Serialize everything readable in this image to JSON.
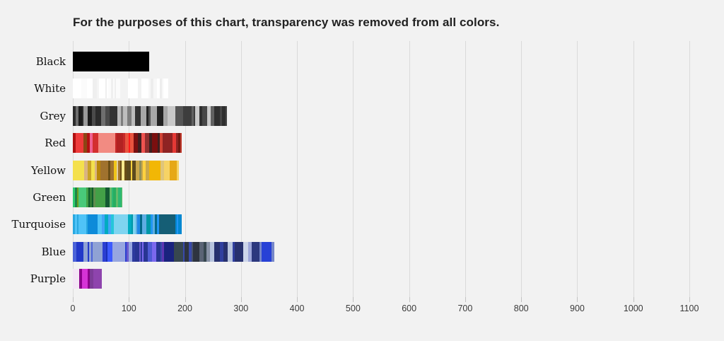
{
  "chart_data": {
    "type": "bar",
    "orientation": "horizontal",
    "title": "For the purposes of this chart, transparency was removed from all colors.",
    "categories": [
      "Black",
      "White",
      "Grey",
      "Red",
      "Yellow",
      "Green",
      "Turquoise",
      "Blue",
      "Purple"
    ],
    "values": [
      136,
      170,
      275,
      194,
      189,
      88,
      194,
      359,
      52
    ],
    "xlabel": "",
    "ylabel": "",
    "xlim": [
      0,
      1100
    ],
    "x_ticks": [
      0,
      100,
      200,
      300,
      400,
      500,
      600,
      700,
      800,
      900,
      1000,
      1100
    ],
    "grid": true,
    "legend": "none",
    "bar_style": "barcode: each bar is packed thin vertical stripes of individual color shades",
    "stripe_palettes": {
      "Black": [
        "#000000"
      ],
      "White": [
        "#ffffff",
        "#f4f4f4",
        "#ffffff",
        "#fbfbfb",
        "#efefef",
        "#ffffff",
        "#f2f2f2",
        "#ffffff",
        "#f7f7f7",
        "#ffffff",
        "#ededed",
        "#ffffff"
      ],
      "Grey": [
        "#2b2b2b",
        "#6e6e6e",
        "#1c1c1c",
        "#9a9a9a",
        "#4a4a4a",
        "#bdbdbd",
        "#333333",
        "#7d7d7d",
        "#232323",
        "#a8a8a8",
        "#555555",
        "#8e8e8e",
        "#3d3d3d",
        "#c9c9c9",
        "#616161",
        "#2f2f2f",
        "#868686",
        "#474747"
      ],
      "Red": [
        "#b01111",
        "#e32636",
        "#8b4513",
        "#ef3b3b",
        "#f06292",
        "#d32f2f",
        "#ff2e4c",
        "#f28b82",
        "#c62828",
        "#ff1a1a",
        "#e8553f",
        "#b22222",
        "#912f2f",
        "#ef5350",
        "#7a0f0f",
        "#3e1f1f",
        "#d14334",
        "#a93226",
        "#e53935",
        "#6d1a12",
        "#c0392b",
        "#8e2323"
      ],
      "Yellow": [
        "#e8d44d",
        "#c9a227",
        "#f4e04d",
        "#b8860b",
        "#d9b382",
        "#8a7a1e",
        "#f0c419",
        "#a0722e",
        "#6b4e16",
        "#e0cda0",
        "#f7e98e",
        "#5c4a1e",
        "#ffd23f",
        "#caa84a",
        "#8f8f5a",
        "#f2b705",
        "#dfc57b",
        "#e6a817",
        "#b5a642",
        "#f6d365"
      ],
      "Green": [
        "#6b9e1f",
        "#2ecc71",
        "#1e8449",
        "#49c97a",
        "#0f5c2e",
        "#37b06a",
        "#2e7d32",
        "#43a047",
        "#5f8d4e",
        "#1abc7b",
        "#0b6623",
        "#27ae60",
        "#145a32",
        "#66bb6a",
        "#1b5e20",
        "#2eb872"
      ],
      "Turquoise": [
        "#29a8e0",
        "#1565c0",
        "#4fc3f7",
        "#0d8bd9",
        "#26c6da",
        "#1f7a99",
        "#42a5f5",
        "#00acc1",
        "#7fd4f0",
        "#1e88e5",
        "#0097a7",
        "#5dade2",
        "#006989",
        "#34b3d1",
        "#2196f3",
        "#155e75",
        "#49b8d6",
        "#0288d1"
      ],
      "Blue": [
        "#2238c9",
        "#4b63d8",
        "#8fa2d4",
        "#1a2fb8",
        "#5c6bc0",
        "#2b3fd1",
        "#97a6e0",
        "#3d5afe",
        "#6a5acd",
        "#2c3a9e",
        "#7b68ee",
        "#283593",
        "#4f5bd5",
        "#1a237e",
        "#5e35b1",
        "#3949ab",
        "#46506b",
        "#37474f",
        "#5a6475",
        "#2e3440",
        "#8892a6",
        "#303f9f",
        "#27316e",
        "#b8c4de",
        "#cdd6ea",
        "#9fa8da",
        "#3f51b5",
        "#2c387e",
        "#7586c9",
        "#2741d6"
      ],
      "Purple": [
        "#f3e6f5",
        "#e91ee9",
        "#ff2ed0",
        "#c71585",
        "#a5009e",
        "#d633d6",
        "#8b008b",
        "#6a1b9a",
        "#b24ab2",
        "#4a148c",
        "#9b59b6",
        "#7d3c98",
        "#3b0a45",
        "#2e0b33",
        "#8e44ad",
        "#4b0e52"
      ]
    }
  },
  "colors": {
    "background": "#f2f2f2",
    "gridline": "#dadada",
    "tick_mark": "#c2c2c2",
    "tick_text": "#3a3a3a",
    "title_text": "#212121",
    "label_text": "#111111"
  }
}
